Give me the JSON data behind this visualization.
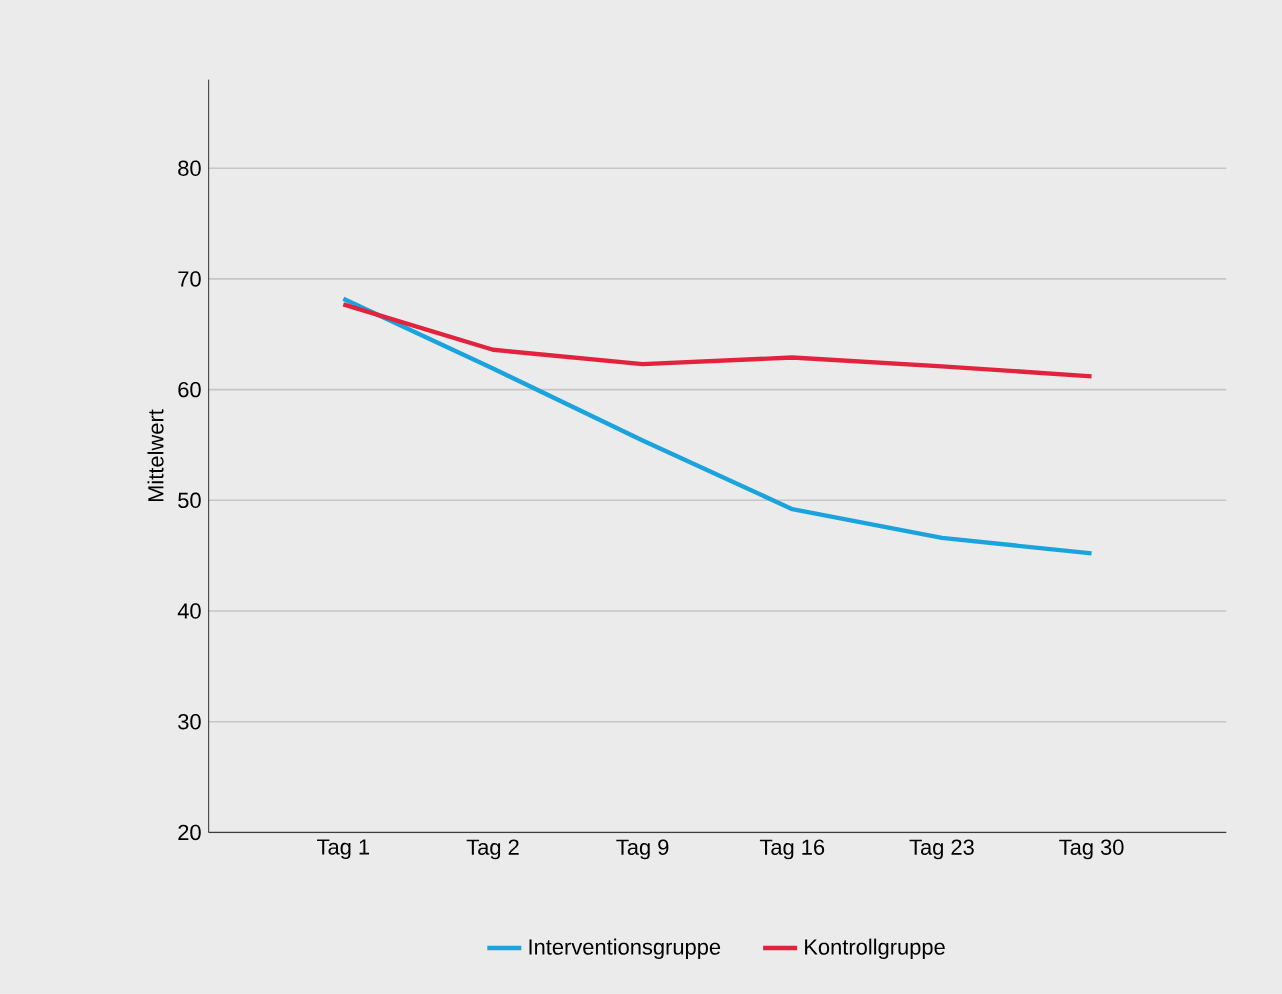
{
  "chart_data": {
    "type": "line",
    "ylabel": "Mittelwert",
    "categories": [
      "Tag 1",
      "Tag 2",
      "Tag 9",
      "Tag 16",
      "Tag 23",
      "Tag 30"
    ],
    "series": [
      {
        "name": "Interventionsgruppe",
        "color": "#1aa3dc",
        "values": [
          68.2,
          61.9,
          55.4,
          49.2,
          46.6,
          45.2
        ]
      },
      {
        "name": "Kontrollgruppe",
        "color": "#e2233d",
        "values": [
          67.7,
          63.6,
          62.3,
          62.9,
          62.1,
          61.2
        ]
      }
    ],
    "ylim": [
      20,
      88
    ],
    "yticks": [
      20,
      30,
      40,
      50,
      60,
      70,
      80
    ],
    "grid": "y",
    "legend": "bottom",
    "marker": "none",
    "line_style": "solid"
  }
}
